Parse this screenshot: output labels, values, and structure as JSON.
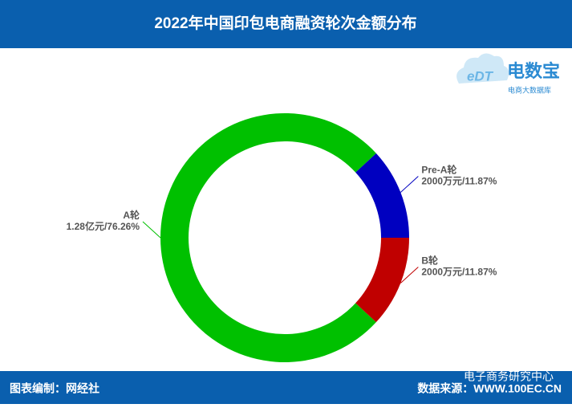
{
  "chart_data": {
    "type": "donut",
    "title": "2022年中国印包电商融资轮次金额分布",
    "categories": [
      "Pre-A轮",
      "A轮",
      "B轮"
    ],
    "values": [
      11.87,
      76.26,
      11.87
    ],
    "value_labels": [
      "2000万元/11.87%",
      "1.28亿元/76.26%",
      "2000万元/11.87%"
    ],
    "colors": [
      "#0000c0",
      "#00c000",
      "#c00000"
    ]
  },
  "logo": {
    "name": "电数宝",
    "subtitle": "电商大数据库",
    "mark": "eDT"
  },
  "footer": {
    "credit": "图表编制：网经社",
    "source": "数据来源：WWW.100EC.CN",
    "watermark": "电子商务研究中心"
  }
}
